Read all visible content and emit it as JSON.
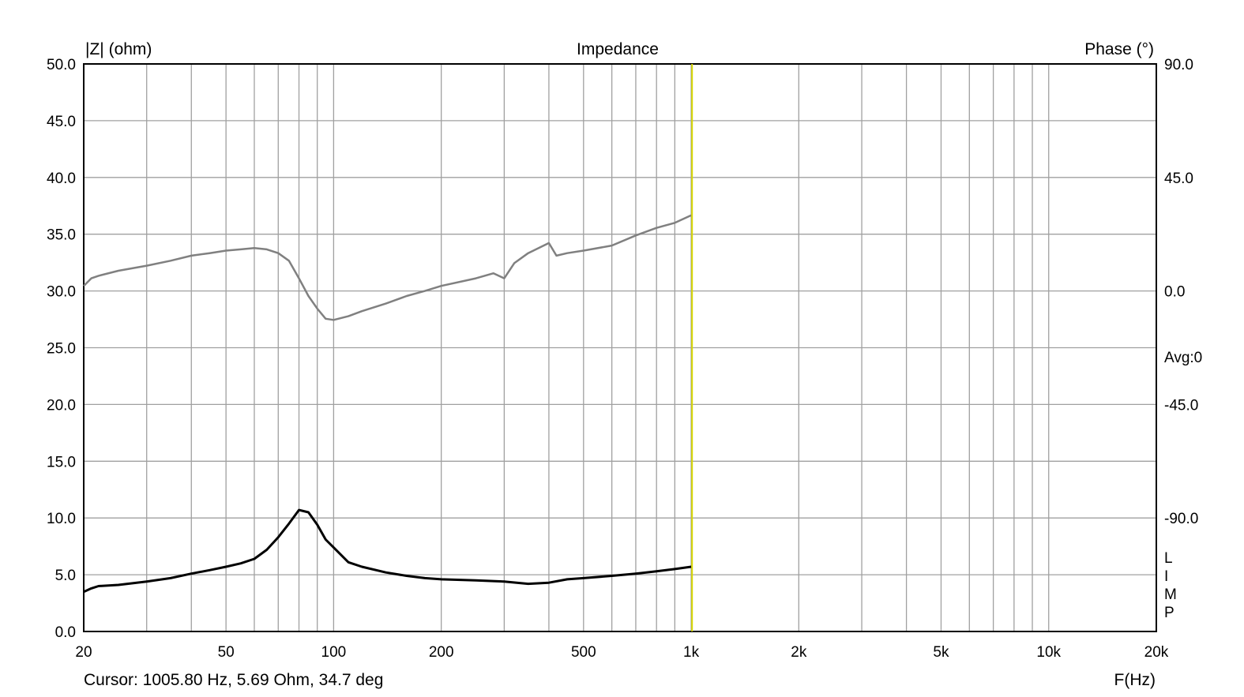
{
  "chart_data": {
    "type": "line",
    "title": "Impedance",
    "ylabel": "|Z| (ohm)",
    "y2label": "Phase (°)",
    "xlabel": "F(Hz)",
    "xscale": "log",
    "xlim": [
      20,
      20000
    ],
    "ylim": [
      0,
      50
    ],
    "y2lim": [
      -135,
      90
    ],
    "x_ticks": [
      {
        "v": 20,
        "t": "20"
      },
      {
        "v": 50,
        "t": "50"
      },
      {
        "v": 100,
        "t": "100"
      },
      {
        "v": 200,
        "t": "200"
      },
      {
        "v": 500,
        "t": "500"
      },
      {
        "v": 1000,
        "t": "1k"
      },
      {
        "v": 2000,
        "t": "2k"
      },
      {
        "v": 5000,
        "t": "5k"
      },
      {
        "v": 10000,
        "t": "10k"
      },
      {
        "v": 20000,
        "t": "20k"
      }
    ],
    "y_ticks": [
      "0.0",
      "5.0",
      "10.0",
      "15.0",
      "20.0",
      "25.0",
      "30.0",
      "35.0",
      "40.0",
      "45.0",
      "50.0"
    ],
    "y2_ticks": [
      {
        "v": 90,
        "t": "90.0"
      },
      {
        "v": 45,
        "t": "45.0"
      },
      {
        "v": 0,
        "t": "0.0"
      },
      {
        "v": -45,
        "t": "-45.0"
      },
      {
        "v": -90,
        "t": "-90.0"
      }
    ],
    "grid": true,
    "cursor": {
      "x": 1005.8,
      "text": "Cursor: 1005.80 Hz, 5.69 Ohm, 34.7 deg",
      "color": "#d8d800"
    },
    "avg_label": "Avg:0",
    "side_letters": [
      "L",
      "I",
      "M",
      "P"
    ],
    "series": [
      {
        "axis": "left",
        "color": "#000000",
        "x": [
          20,
          21,
          22,
          25,
          30,
          35,
          40,
          45,
          50,
          55,
          60,
          65,
          70,
          75,
          80,
          85,
          90,
          95,
          100,
          110,
          120,
          140,
          160,
          180,
          200,
          250,
          300,
          350,
          400,
          450,
          500,
          600,
          700,
          800,
          900,
          1000
        ],
        "y": [
          3.5,
          3.8,
          4.0,
          4.1,
          4.4,
          4.7,
          5.1,
          5.4,
          5.7,
          6.0,
          6.4,
          7.2,
          8.3,
          9.5,
          10.7,
          10.5,
          9.4,
          8.1,
          7.4,
          6.1,
          5.7,
          5.2,
          4.9,
          4.7,
          4.6,
          4.5,
          4.4,
          4.2,
          4.3,
          4.6,
          4.7,
          4.9,
          5.1,
          5.3,
          5.5,
          5.7
        ]
      },
      {
        "axis": "right",
        "color": "#808080",
        "x": [
          20,
          21,
          22,
          25,
          30,
          35,
          40,
          45,
          50,
          55,
          60,
          65,
          70,
          75,
          80,
          85,
          90,
          95,
          100,
          110,
          120,
          140,
          160,
          180,
          200,
          250,
          280,
          300,
          320,
          350,
          400,
          420,
          450,
          500,
          600,
          700,
          800,
          900,
          1000
        ],
        "y": [
          2,
          5,
          6,
          8,
          10,
          12,
          14,
          15,
          16,
          16.5,
          17,
          16.5,
          15,
          12,
          5,
          -2,
          -7,
          -11,
          -11.5,
          -10,
          -8,
          -5,
          -2,
          0,
          2,
          5,
          7,
          5,
          11,
          15,
          19,
          14,
          15,
          16,
          18,
          22,
          25,
          27,
          30
        ]
      }
    ]
  }
}
